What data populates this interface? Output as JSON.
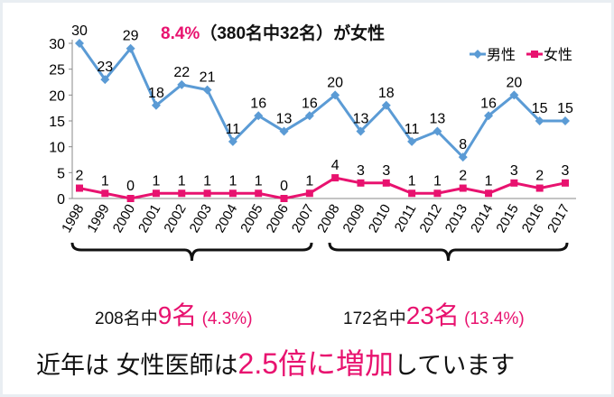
{
  "chart_data": {
    "type": "line",
    "title_highlight": "8.4%",
    "title_rest": "（380名中32名）が女性",
    "categories": [
      "1998",
      "1999",
      "2000",
      "2001",
      "2002",
      "2003",
      "2004",
      "2005",
      "2006",
      "2007",
      "2008",
      "2009",
      "2010",
      "2011",
      "2012",
      "2013",
      "2014",
      "2015",
      "2016",
      "2017"
    ],
    "series": [
      {
        "name": "男性",
        "color": "#5b9bd5",
        "marker": "diamond",
        "values": [
          30,
          23,
          29,
          18,
          22,
          21,
          11,
          16,
          13,
          16,
          20,
          13,
          18,
          11,
          13,
          8,
          16,
          20,
          15,
          15
        ]
      },
      {
        "name": "女性",
        "color": "#e8126f",
        "marker": "square",
        "values": [
          2,
          1,
          0,
          1,
          1,
          1,
          1,
          1,
          0,
          1,
          4,
          3,
          3,
          1,
          1,
          2,
          1,
          3,
          2,
          3
        ]
      }
    ],
    "yticks": [
      0,
      5,
      10,
      15,
      20,
      25,
      30
    ],
    "ylim": [
      0,
      30
    ],
    "legend": "top-right",
    "grid": false,
    "data_labels": true
  },
  "annotations": {
    "group1": {
      "pre": "208名中",
      "num": "9名",
      "pct": "(4.3%)"
    },
    "group2": {
      "pre": "172名中",
      "num": "23名",
      "pct": "(13.4%)"
    },
    "footer": {
      "pre": "近年は 女性医師は",
      "highlight": "2.5倍に増加",
      "post": "しています"
    }
  }
}
